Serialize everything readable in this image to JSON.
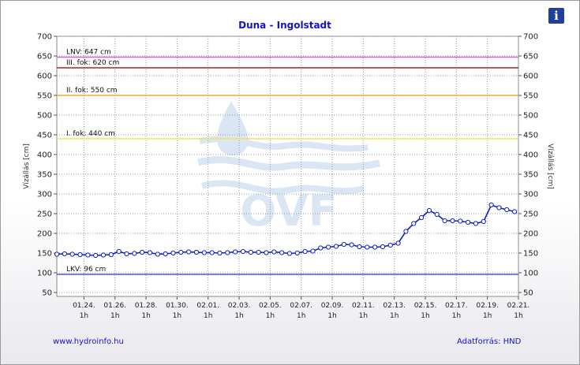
{
  "chart_data": {
    "type": "line",
    "title": "Duna - Ingolstadt",
    "ylabel_left": "Vízállás [cm]",
    "ylabel_right": "Vízállás [cm]",
    "ylim": [
      40,
      700
    ],
    "yticks": [
      50,
      100,
      150,
      200,
      250,
      300,
      350,
      400,
      450,
      500,
      550,
      600,
      650,
      700
    ],
    "grid": true,
    "x_ticks": [
      {
        "date": "01.24.",
        "hour": "1h",
        "t": 1.75
      },
      {
        "date": "01.26.",
        "hour": "1h",
        "t": 3.75
      },
      {
        "date": "01.28.",
        "hour": "1h",
        "t": 5.75
      },
      {
        "date": "01.30.",
        "hour": "1h",
        "t": 7.75
      },
      {
        "date": "02.01.",
        "hour": "1h",
        "t": 9.75
      },
      {
        "date": "02.03.",
        "hour": "1h",
        "t": 11.75
      },
      {
        "date": "02.05.",
        "hour": "1h",
        "t": 13.75
      },
      {
        "date": "02.07.",
        "hour": "1h",
        "t": 15.75
      },
      {
        "date": "02.09.",
        "hour": "1h",
        "t": 17.75
      },
      {
        "date": "02.11.",
        "hour": "1h",
        "t": 19.75
      },
      {
        "date": "02.13.",
        "hour": "1h",
        "t": 21.75
      },
      {
        "date": "02.15.",
        "hour": "1h",
        "t": 23.75
      },
      {
        "date": "02.17.",
        "hour": "1h",
        "t": 25.75
      },
      {
        "date": "02.19.",
        "hour": "1h",
        "t": 27.75
      },
      {
        "date": "02.21.",
        "hour": "1h",
        "t": 29.75
      }
    ],
    "x_range": [
      0,
      29.75
    ],
    "thresholds": [
      {
        "label": "LNV: 647 cm",
        "value": 647,
        "color": "#e05ae0"
      },
      {
        "label": "III. fok: 620 cm",
        "value": 620,
        "color": "#b02020"
      },
      {
        "label": "II. fok: 550 cm",
        "value": 550,
        "color": "#f0a830"
      },
      {
        "label": "I. fok: 440 cm",
        "value": 440,
        "color": "#f0e060"
      },
      {
        "label": "LKV: 96 cm",
        "value": 96,
        "color": "#5050e0"
      }
    ],
    "series": [
      {
        "color": "#1020c0",
        "points": [
          [
            0,
            147
          ],
          [
            0.5,
            148
          ],
          [
            1,
            147
          ],
          [
            1.5,
            146
          ],
          [
            2,
            145
          ],
          [
            2.5,
            144
          ],
          [
            3,
            145
          ],
          [
            3.5,
            146
          ],
          [
            4,
            154
          ],
          [
            4.5,
            148
          ],
          [
            5,
            149
          ],
          [
            5.5,
            152
          ],
          [
            6,
            151
          ],
          [
            6.5,
            147
          ],
          [
            7,
            148
          ],
          [
            7.5,
            150
          ],
          [
            8,
            152
          ],
          [
            8.5,
            153
          ],
          [
            9,
            152
          ],
          [
            9.5,
            151
          ],
          [
            10,
            151
          ],
          [
            10.5,
            150
          ],
          [
            11,
            151
          ],
          [
            11.5,
            153
          ],
          [
            12,
            154
          ],
          [
            12.5,
            152
          ],
          [
            13,
            152
          ],
          [
            13.5,
            151
          ],
          [
            14,
            153
          ],
          [
            14.5,
            151
          ],
          [
            15,
            149
          ],
          [
            15.5,
            150
          ],
          [
            16,
            154
          ],
          [
            16.5,
            155
          ],
          [
            17,
            163
          ],
          [
            17.5,
            165
          ],
          [
            18,
            167
          ],
          [
            18.5,
            172
          ],
          [
            19,
            171
          ],
          [
            19.5,
            166
          ],
          [
            20,
            165
          ],
          [
            20.5,
            165
          ],
          [
            21,
            166
          ],
          [
            21.5,
            170
          ],
          [
            22,
            175
          ],
          [
            22.5,
            205
          ],
          [
            23,
            225
          ],
          [
            23.5,
            240
          ],
          [
            24,
            258
          ],
          [
            24.5,
            248
          ],
          [
            25,
            232
          ],
          [
            25.5,
            232
          ],
          [
            26,
            231
          ],
          [
            26.5,
            228
          ],
          [
            27,
            225
          ],
          [
            27.5,
            230
          ],
          [
            28,
            272
          ],
          [
            28.5,
            265
          ],
          [
            29,
            260
          ],
          [
            29.5,
            255
          ]
        ]
      }
    ]
  },
  "watermark": {
    "text": "OVF"
  },
  "footer": {
    "left": "www.hydroinfo.hu",
    "right": "Adatforrás: HND"
  },
  "info_button": {
    "label": "i"
  }
}
